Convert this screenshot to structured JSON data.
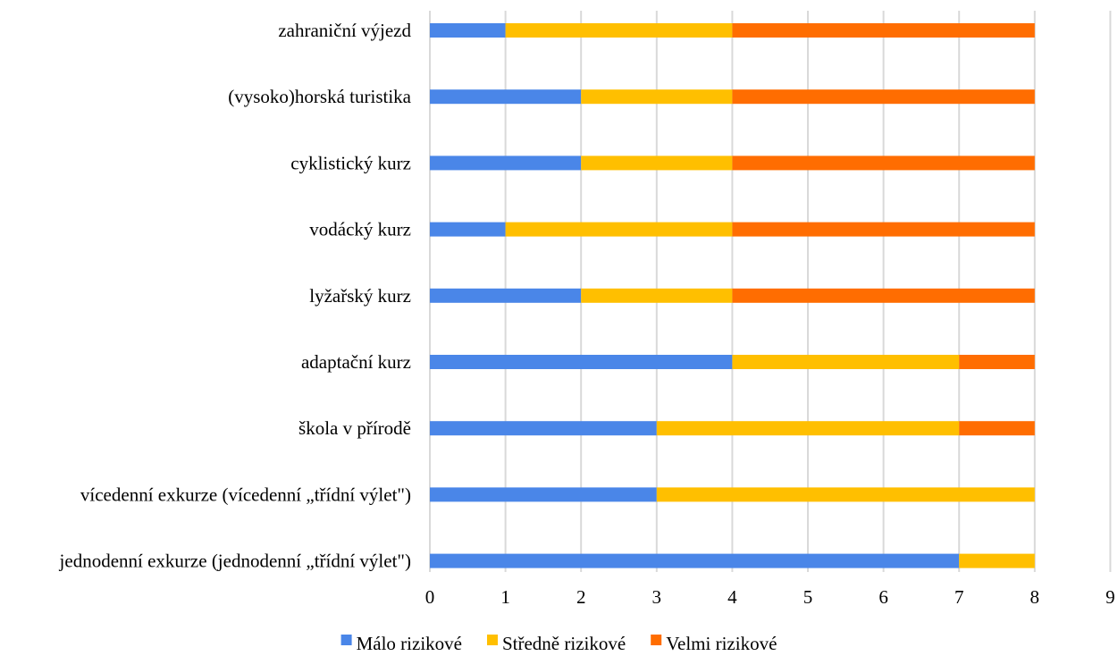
{
  "chart_data": {
    "type": "bar",
    "orientation": "horizontal",
    "stacked": true,
    "categories": [
      "jednodenní exkurze (jednodenní „třídní výlet\")",
      "vícedenní exkurze (vícedenní „třídní výlet\")",
      "škola v přírodě",
      "adaptační kurz",
      "lyžařský kurz",
      "vodácký kurz",
      "cyklistický kurz",
      "(vysoko)horská turistika",
      "zahraniční výjezd"
    ],
    "series": [
      {
        "name": "Málo rizikové",
        "color": "#4a86e8",
        "values": [
          7,
          3,
          3,
          4,
          2,
          1,
          2,
          2,
          1
        ]
      },
      {
        "name": "Středně rizikové",
        "color": "#ffbf00",
        "values": [
          1,
          5,
          4,
          3,
          2,
          3,
          2,
          2,
          3
        ]
      },
      {
        "name": "Velmi rizikové",
        "color": "#ff6d01",
        "values": [
          0,
          0,
          1,
          1,
          4,
          4,
          4,
          4,
          4
        ]
      }
    ],
    "xlim": [
      0,
      9
    ],
    "xticks": [
      "0",
      "1",
      "2",
      "3",
      "4",
      "5",
      "6",
      "7",
      "8",
      "9"
    ],
    "grid": true,
    "legend_position": "bottom",
    "title": "",
    "xlabel": "",
    "ylabel": ""
  }
}
